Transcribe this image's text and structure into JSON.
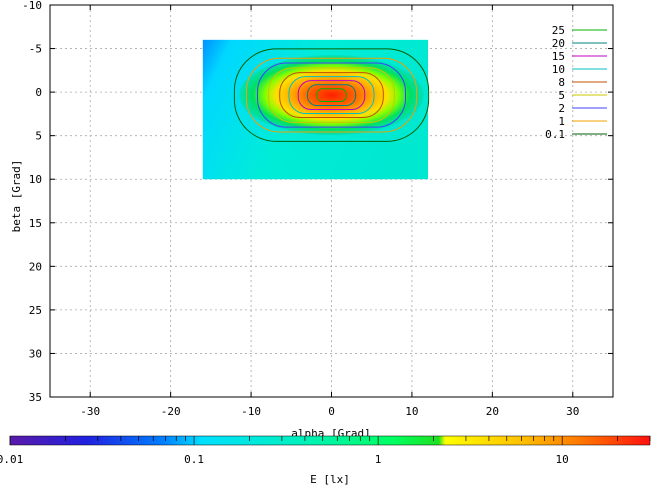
{
  "chart_data": {
    "type": "heatmap",
    "xlabel": "alpha [Grad]",
    "ylabel": "beta [Grad]",
    "xlim": [
      -35,
      35
    ],
    "ylim": [
      -10,
      35
    ],
    "y_inverted": true,
    "x_ticks": [
      -30,
      -20,
      -10,
      0,
      10,
      20,
      30
    ],
    "y_ticks": [
      -10,
      -5,
      0,
      5,
      10,
      15,
      20,
      25,
      30,
      35
    ],
    "grid": true,
    "data_extent": {
      "alpha": [
        -16,
        12
      ],
      "beta": [
        -6,
        10
      ]
    },
    "peak": {
      "alpha": 0,
      "beta": 0
    },
    "contours": [
      {
        "level": "25",
        "color": "#00b000"
      },
      {
        "level": "20",
        "color": "#008080"
      },
      {
        "level": "15",
        "color": "#c000c0"
      },
      {
        "level": "10",
        "color": "#00c0c0"
      },
      {
        "level": "8",
        "color": "#c05000"
      },
      {
        "level": "5",
        "color": "#c8c800"
      },
      {
        "level": "2",
        "color": "#4040ff"
      },
      {
        "level": "1",
        "color": "#f0a000"
      },
      {
        "level": "0.1",
        "color": "#006000"
      }
    ],
    "legend_position": "top-right",
    "colorbar": {
      "label": "E [lx]",
      "scale": "log",
      "range": [
        0.01,
        30
      ],
      "tick_labels": [
        "0.01",
        "0.1",
        "1",
        "10"
      ],
      "tick_values": [
        0.01,
        0.1,
        1,
        10
      ]
    }
  }
}
